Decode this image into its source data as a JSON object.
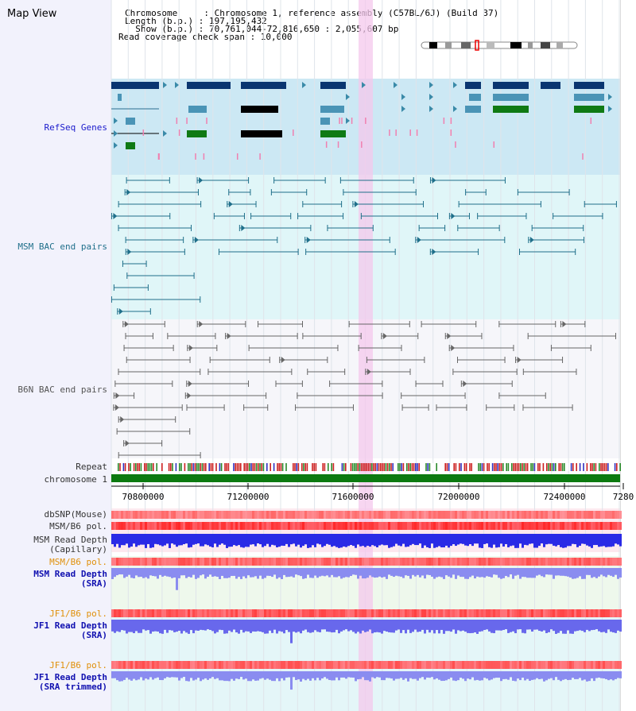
{
  "page": {
    "title": "Map View"
  },
  "info": {
    "chromosome_line": "Chromosome     : Chromosome 1, reference assembly (C57BL/6J) (Build 37)",
    "length_line": "Length (b.p.) : 197,195,432",
    "show_line": "  Show (b.p.) : 70,761,044-72,816,650 : 2,055,607 bp",
    "coverage_line": "Read coverage check span : 10,000"
  },
  "tracks": {
    "refseq": "RefSeq Genes",
    "msm_bac": "MSM BAC end pairs",
    "b6n_bac": "B6N BAC end pairs",
    "repeat": "Repeat",
    "chromosome": "chromosome 1",
    "dbsnp": "dbSNP(Mouse)",
    "msm_b6_pol_1": "MSM/B6 pol.",
    "msm_read_depth_cap_1": "MSM Read Depth",
    "msm_read_depth_cap_2": "(Capillary)",
    "msm_b6_pol_2": "MSM/B6 pol.",
    "msm_read_depth_sra_1": "MSM Read Depth",
    "msm_read_depth_sra_2": "(SRA)",
    "jf1_b6_pol_1": "JF1/B6 pol.",
    "jf1_read_depth_sra_1": "JF1 Read Depth",
    "jf1_read_depth_sra_2": "(SRA)",
    "jf1_b6_pol_2": "JF1/B6 pol.",
    "jf1_read_depth_trim_1": "JF1 Read Depth",
    "jf1_read_depth_trim_2": "(SRA trimmed)"
  },
  "axis": {
    "ticks": [
      "70800000",
      "71200000",
      "71600000",
      "72000000",
      "72400000",
      "7280"
    ]
  },
  "colors": {
    "refseq_bg": "#cce8f4",
    "msm_bg": "#e0f6f8",
    "highlight": "#f4c8ec",
    "gene_dark": "#0a3570",
    "gene_mid": "#4a94b6",
    "gene_green": "#0f7a14",
    "chromosome_bar": "#0c7a10",
    "depth_blue": "#2a2ae6",
    "depth_light": "#8a8cf0",
    "pol_red": "#e83030"
  }
}
